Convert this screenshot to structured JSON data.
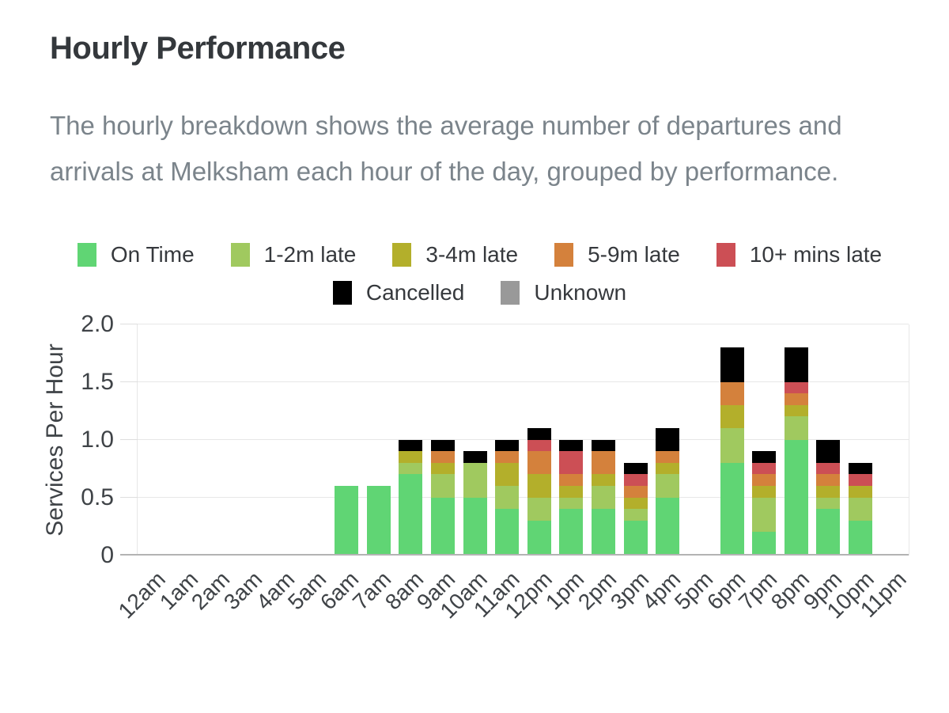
{
  "title": "Hourly Performance",
  "description": "The hourly breakdown shows the average number of departures and arrivals at Melksham each hour of the day, grouped by performance.",
  "chart_data": {
    "type": "bar",
    "stacked": true,
    "ylabel": "Services Per Hour",
    "ylim": [
      0,
      2.0
    ],
    "ytick_labels": [
      "0",
      "0.5",
      "1.0",
      "1.5",
      "2.0"
    ],
    "grid": "horizontal",
    "legend_position": "top",
    "legend_split": 5,
    "categories": [
      "12am",
      "1am",
      "2am",
      "3am",
      "4am",
      "5am",
      "6am",
      "7am",
      "8am",
      "9am",
      "10am",
      "11am",
      "12pm",
      "1pm",
      "2pm",
      "3pm",
      "4pm",
      "5pm",
      "6pm",
      "7pm",
      "8pm",
      "9pm",
      "10pm",
      "11pm"
    ],
    "series": [
      {
        "name": "On Time",
        "color": "#60d574",
        "values": [
          0,
          0,
          0,
          0,
          0,
          0,
          0.6,
          0.6,
          0.7,
          0.5,
          0.5,
          0.4,
          0.3,
          0.4,
          0.4,
          0.3,
          0.5,
          0,
          0.8,
          0.2,
          1.0,
          0.4,
          0.3,
          0
        ]
      },
      {
        "name": "1-2m late",
        "color": "#a0c95f",
        "values": [
          0,
          0,
          0,
          0,
          0,
          0,
          0,
          0,
          0.1,
          0.2,
          0.3,
          0.2,
          0.2,
          0.1,
          0.2,
          0.1,
          0.2,
          0,
          0.3,
          0.3,
          0.2,
          0.1,
          0.2,
          0
        ]
      },
      {
        "name": "3-4m late",
        "color": "#b3af2b",
        "values": [
          0,
          0,
          0,
          0,
          0,
          0,
          0,
          0,
          0.1,
          0.1,
          0,
          0.2,
          0.2,
          0.1,
          0.1,
          0.1,
          0.1,
          0,
          0.2,
          0.1,
          0.1,
          0.1,
          0.1,
          0
        ]
      },
      {
        "name": "5-9m late",
        "color": "#d4813c",
        "values": [
          0,
          0,
          0,
          0,
          0,
          0,
          0,
          0,
          0,
          0.1,
          0,
          0.1,
          0.2,
          0.1,
          0.2,
          0.1,
          0.1,
          0,
          0.2,
          0.1,
          0.1,
          0.1,
          0,
          0
        ]
      },
      {
        "name": "10+ mins late",
        "color": "#cc4f55",
        "values": [
          0,
          0,
          0,
          0,
          0,
          0,
          0,
          0,
          0,
          0,
          0,
          0,
          0.1,
          0.2,
          0,
          0.1,
          0,
          0,
          0,
          0.1,
          0.1,
          0.1,
          0.1,
          0
        ]
      },
      {
        "name": "Cancelled",
        "color": "#000000",
        "values": [
          0,
          0,
          0,
          0,
          0,
          0,
          0,
          0,
          0.1,
          0.1,
          0.1,
          0.1,
          0.1,
          0.1,
          0.1,
          0.1,
          0.2,
          0,
          0.3,
          0.1,
          0.3,
          0.2,
          0.1,
          0
        ]
      },
      {
        "name": "Unknown",
        "color": "#999999",
        "values": [
          0,
          0,
          0,
          0,
          0,
          0,
          0,
          0,
          0,
          0,
          0,
          0,
          0,
          0,
          0,
          0,
          0,
          0,
          0,
          0,
          0,
          0,
          0,
          0
        ]
      }
    ]
  }
}
